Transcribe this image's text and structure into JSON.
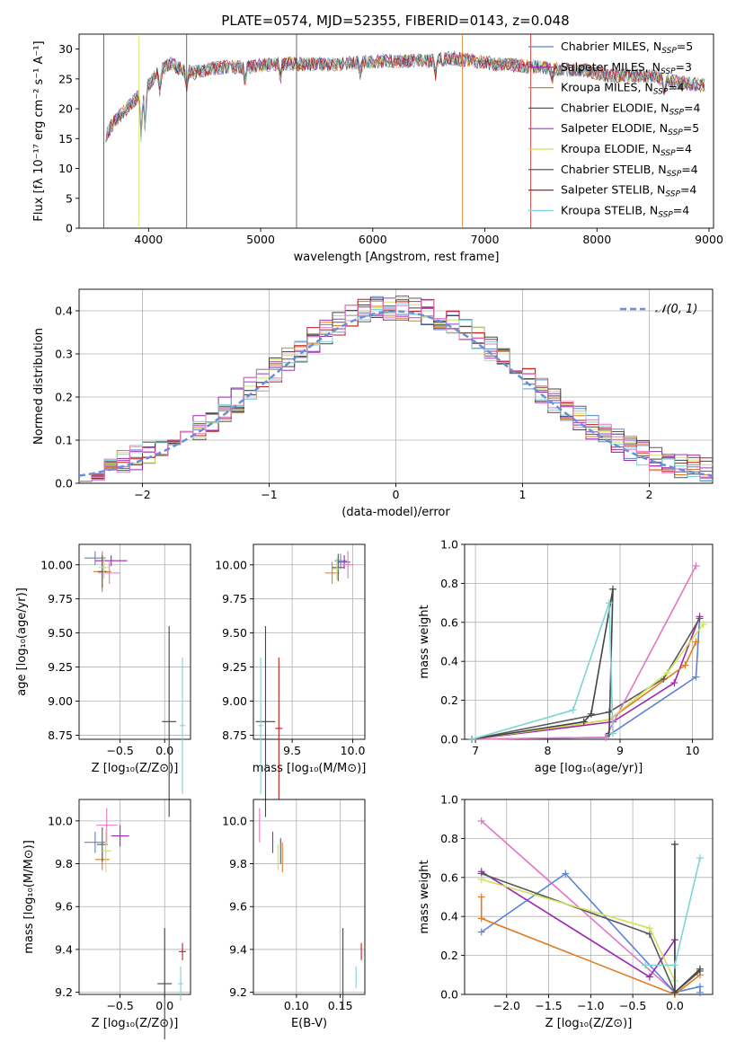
{
  "figure_title": "PLATE=0574, MJD=52355, FIBERID=0143, z=0.048",
  "colors": {
    "chabrier_miles": "#5b84d6",
    "salpeter_miles": "#9c27b0",
    "kroupa_miles": "#e07c22",
    "chabrier_elodie": "#5a5a5a",
    "salpeter_elodie": "#9b3ab8",
    "kroupa_elodie": "#cfe25a",
    "chabrier_stelib": "#444444",
    "salpeter_stelib": "#c01a1a",
    "kroupa_stelib": "#7fd3d7",
    "pink": "#e377c2",
    "gaussian": "#6a8fd8",
    "grid": "#b0b0b0"
  },
  "chart_data": [
    {
      "id": "spectrum",
      "type": "line",
      "title": "PLATE=0574, MJD=52355, FIBERID=0143, z=0.048",
      "xlabel": "wavelength [Angstrom, rest frame]",
      "ylabel": "Flux [fλ 10⁻¹⁷ erg cm⁻² s⁻¹ A⁻¹]",
      "xlim": [
        3380,
        9040
      ],
      "ylim": [
        0,
        32.5
      ],
      "xticks": [
        4000,
        5000,
        6000,
        7000,
        8000,
        9000
      ],
      "yticks": [
        0,
        5,
        10,
        15,
        20,
        25,
        30
      ],
      "grid": false,
      "legend_position": "right",
      "continuum": {
        "x": [
          3600,
          3700,
          3800,
          3900,
          4000,
          4100,
          4200,
          4300,
          4400,
          4500,
          4700,
          4900,
          5100,
          5300,
          5500,
          5700,
          5900,
          6100,
          6300,
          6500,
          6700,
          6900,
          7100,
          7300,
          7500,
          7700,
          7900,
          8100,
          8300,
          8500,
          8700,
          8900
        ],
        "y": [
          15,
          18,
          20,
          22,
          24,
          26.5,
          27.5,
          26.5,
          26,
          26.5,
          27,
          27,
          27.5,
          27.5,
          27.5,
          27.5,
          27.8,
          28,
          28,
          28,
          28.5,
          28,
          27.5,
          27.2,
          27,
          26.5,
          26.5,
          25.5,
          25.5,
          25.5,
          24.5,
          24
        ]
      },
      "series": [
        {
          "name": "Chabrier MILES, N_SSP=5",
          "color_key": "chabrier_miles"
        },
        {
          "name": "Salpeter MILES, N_SSP=3",
          "color_key": "salpeter_miles"
        },
        {
          "name": "Kroupa MILES, N_SSP=4",
          "color_key": "kroupa_miles"
        },
        {
          "name": "Chabrier ELODIE, N_SSP=4",
          "color_key": "chabrier_elodie"
        },
        {
          "name": "Salpeter ELODIE, N_SSP=5",
          "color_key": "salpeter_elodie"
        },
        {
          "name": "Kroupa ELODIE, N_SSP=4",
          "color_key": "kroupa_elodie"
        },
        {
          "name": "Chabrier STELIB, N_SSP=4",
          "color_key": "chabrier_stelib"
        },
        {
          "name": "Salpeter STELIB, N_SSP=4",
          "color_key": "salpeter_stelib"
        },
        {
          "name": "Kroupa STELIB, N_SSP=4",
          "color_key": "kroupa_stelib"
        }
      ]
    },
    {
      "id": "residuals",
      "type": "line",
      "xlabel": "(data-model)/error",
      "ylabel": "Normed distribution",
      "xlim": [
        -2.5,
        2.5
      ],
      "ylim": [
        0,
        0.45
      ],
      "xticks": [
        -2,
        -1,
        0,
        1,
        2
      ],
      "yticks": [
        0.0,
        0.1,
        0.2,
        0.3,
        0.4
      ],
      "grid": true,
      "legend": "𝒩(0, 1)",
      "legend_position": "top-right",
      "hist_bins": 50,
      "series_color_keys": [
        "chabrier_miles",
        "salpeter_miles",
        "kroupa_miles",
        "chabrier_elodie",
        "salpeter_elodie",
        "kroupa_elodie",
        "chabrier_stelib",
        "salpeter_stelib",
        "kroupa_stelib",
        "pink"
      ]
    },
    {
      "id": "age_vs_Z",
      "type": "scatter",
      "xlabel": "Z [log₁₀(Z/Z⊙)]",
      "ylabel": "age  [log₁₀(age/yr)]",
      "xlim": [
        -0.96,
        0.29
      ],
      "ylim": [
        8.72,
        10.15
      ],
      "xticks": [
        -0.5,
        0.0
      ],
      "yticks": [
        8.75,
        9.0,
        9.25,
        9.5,
        9.75,
        10.0
      ],
      "grid": true,
      "points": [
        {
          "x": -0.78,
          "y": 10.05,
          "xerr": 0.12,
          "yerr": 0.05,
          "color_key": "chabrier_miles"
        },
        {
          "x": -0.6,
          "y": 10.03,
          "xerr": 0.18,
          "yerr": 0.04,
          "color_key": "salpeter_miles"
        },
        {
          "x": -0.7,
          "y": 9.95,
          "xerr": 0.1,
          "yerr": 0.15,
          "color_key": "kroupa_miles"
        },
        {
          "x": -0.7,
          "y": 9.95,
          "xerr": 0.05,
          "yerr": 0.12,
          "color_key": "chabrier_elodie"
        },
        {
          "x": -0.62,
          "y": 9.94,
          "xerr": 0.12,
          "yerr": 0.08,
          "color_key": "pink"
        },
        {
          "x": -0.68,
          "y": 9.98,
          "xerr": 0.06,
          "yerr": 0.08,
          "color_key": "kroupa_elodie"
        },
        {
          "x": 0.05,
          "y": 8.85,
          "xerr": 0.08,
          "yerr": 0.7,
          "color_key": "chabrier_stelib"
        },
        {
          "x": 0.2,
          "y": 8.82,
          "xerr": 0.03,
          "yerr": 0.5,
          "color_key": "kroupa_stelib"
        }
      ]
    },
    {
      "id": "age_vs_mass",
      "type": "scatter",
      "xlabel": "mass [log₁₀(M/M⊙)]",
      "xlim": [
        9.18,
        10.1
      ],
      "ylim": [
        8.72,
        10.15
      ],
      "xticks": [
        9.5,
        10.0
      ],
      "yticks": [
        8.75,
        9.0,
        9.25,
        9.5,
        9.75,
        10.0
      ],
      "grid": true,
      "points": [
        {
          "x": 9.9,
          "y": 10.03,
          "xerr": 0.05,
          "yerr": 0.05,
          "color_key": "chabrier_miles"
        },
        {
          "x": 9.93,
          "y": 10.02,
          "xerr": 0.05,
          "yerr": 0.05,
          "color_key": "salpeter_miles"
        },
        {
          "x": 9.83,
          "y": 9.94,
          "xerr": 0.06,
          "yerr": 0.08,
          "color_key": "kroupa_miles"
        },
        {
          "x": 9.88,
          "y": 9.98,
          "xerr": 0.05,
          "yerr": 0.1,
          "color_key": "chabrier_elodie"
        },
        {
          "x": 9.96,
          "y": 10.0,
          "xerr": 0.05,
          "yerr": 0.1,
          "color_key": "pink"
        },
        {
          "x": 9.87,
          "y": 9.97,
          "xerr": 0.04,
          "yerr": 0.08,
          "color_key": "kroupa_elodie"
        },
        {
          "x": 9.28,
          "y": 8.85,
          "xerr": 0.08,
          "yerr": 0.7,
          "color_key": "chabrier_stelib"
        },
        {
          "x": 9.39,
          "y": 8.8,
          "xerr": 0.03,
          "yerr": 0.52,
          "color_key": "salpeter_stelib"
        },
        {
          "x": 9.24,
          "y": 8.82,
          "xerr": 0.02,
          "yerr": 0.5,
          "color_key": "kroupa_stelib"
        }
      ]
    },
    {
      "id": "massweight_vs_age",
      "type": "line",
      "xlabel": "age  [log₁₀(age/yr)]",
      "ylabel": "mass weight",
      "xlim": [
        6.85,
        10.28
      ],
      "ylim": [
        0,
        1.0
      ],
      "xticks": [
        7,
        8,
        9,
        10
      ],
      "yticks": [
        0.0,
        0.2,
        0.4,
        0.6,
        0.8,
        1.0
      ],
      "grid": true,
      "series": [
        {
          "color_key": "chabrier_miles",
          "x": [
            6.95,
            8.8,
            10.05,
            10.1
          ],
          "y": [
            0.0,
            0.01,
            0.32,
            0.62
          ]
        },
        {
          "color_key": "salpeter_miles",
          "x": [
            6.95,
            8.9,
            9.75,
            10.1
          ],
          "y": [
            0.0,
            0.09,
            0.29,
            0.63
          ]
        },
        {
          "color_key": "kroupa_miles",
          "x": [
            6.95,
            8.85,
            9.9,
            10.05
          ],
          "y": [
            0.0,
            0.1,
            0.38,
            0.5
          ]
        },
        {
          "color_key": "chabrier_elodie",
          "x": [
            6.95,
            8.85,
            9.6,
            10.1
          ],
          "y": [
            0.0,
            0.14,
            0.31,
            0.62
          ]
        },
        {
          "color_key": "pink",
          "x": [
            6.95,
            8.8,
            10.05
          ],
          "y": [
            0.0,
            0.01,
            0.89
          ]
        },
        {
          "color_key": "kroupa_elodie",
          "x": [
            6.95,
            8.85,
            9.65,
            10.15
          ],
          "y": [
            0.0,
            0.1,
            0.34,
            0.59
          ]
        },
        {
          "color_key": "chabrier_stelib",
          "x": [
            6.95,
            8.5,
            8.6,
            8.9,
            8.85
          ],
          "y": [
            0.0,
            0.09,
            0.13,
            0.77,
            0.03
          ]
        },
        {
          "color_key": "kroupa_stelib",
          "x": [
            6.95,
            8.35,
            8.85,
            8.9
          ],
          "y": [
            0.0,
            0.15,
            0.7,
            0.03
          ]
        }
      ]
    },
    {
      "id": "mass_vs_Z",
      "type": "scatter",
      "xlabel": "Z [log₁₀(Z/Z⊙)]",
      "ylabel": "mass [log₁₀(M/M⊙)]",
      "xlim": [
        -0.96,
        0.29
      ],
      "ylim": [
        9.19,
        10.1
      ],
      "xticks": [
        -0.5,
        0.0
      ],
      "yticks": [
        9.2,
        9.4,
        9.6,
        9.8,
        10.0
      ],
      "grid": true,
      "points": [
        {
          "x": -0.78,
          "y": 9.9,
          "xerr": 0.12,
          "yerr": 0.05,
          "color_key": "chabrier_miles"
        },
        {
          "x": -0.5,
          "y": 9.93,
          "xerr": 0.1,
          "yerr": 0.05,
          "color_key": "salpeter_miles"
        },
        {
          "x": -0.7,
          "y": 9.82,
          "xerr": 0.08,
          "yerr": 0.05,
          "color_key": "kroupa_miles"
        },
        {
          "x": -0.7,
          "y": 9.89,
          "xerr": 0.06,
          "yerr": 0.08,
          "color_key": "chabrier_elodie"
        },
        {
          "x": -0.65,
          "y": 9.98,
          "xerr": 0.12,
          "yerr": 0.08,
          "color_key": "pink"
        },
        {
          "x": -0.66,
          "y": 9.86,
          "xerr": 0.06,
          "yerr": 0.1,
          "color_key": "kroupa_elodie"
        },
        {
          "x": 0.0,
          "y": 9.24,
          "xerr": 0.08,
          "yerr": 0.26,
          "color_key": "chabrier_stelib"
        },
        {
          "x": 0.2,
          "y": 9.39,
          "xerr": 0.04,
          "yerr": 0.04,
          "color_key": "salpeter_stelib"
        },
        {
          "x": 0.18,
          "y": 9.24,
          "xerr": 0.03,
          "yerr": 0.08,
          "color_key": "kroupa_stelib"
        }
      ]
    },
    {
      "id": "mass_vs_ebv",
      "type": "scatter",
      "xlabel": "E(B-V)",
      "xlim": [
        0.051,
        0.178
      ],
      "ylim": [
        9.19,
        10.1
      ],
      "xticks": [
        0.1,
        0.15
      ],
      "yticks": [
        9.2,
        9.4,
        9.6,
        9.8,
        10.0
      ],
      "grid": true,
      "points": [
        {
          "x": 0.058,
          "y": 9.98,
          "xerr": 0.0,
          "yerr": 0.08,
          "color_key": "pink"
        },
        {
          "x": 0.073,
          "y": 9.9,
          "xerr": 0.0,
          "yerr": 0.05,
          "color_key": "salpeter_miles"
        },
        {
          "x": 0.079,
          "y": 9.83,
          "xerr": 0.0,
          "yerr": 0.06,
          "color_key": "kroupa_elodie"
        },
        {
          "x": 0.082,
          "y": 9.86,
          "xerr": 0.0,
          "yerr": 0.06,
          "color_key": "chabrier_elodie"
        },
        {
          "x": 0.084,
          "y": 9.83,
          "xerr": 0.0,
          "yerr": 0.07,
          "color_key": "kroupa_miles"
        },
        {
          "x": 0.153,
          "y": 9.31,
          "xerr": 0.0,
          "yerr": 0.19,
          "color_key": "chabrier_stelib"
        },
        {
          "x": 0.168,
          "y": 9.27,
          "xerr": 0.0,
          "yerr": 0.05,
          "color_key": "kroupa_stelib"
        },
        {
          "x": 0.174,
          "y": 9.39,
          "xerr": 0.0,
          "yerr": 0.04,
          "color_key": "salpeter_stelib"
        }
      ]
    },
    {
      "id": "massweight_vs_Z",
      "type": "line",
      "xlabel": "Z [log₁₀(Z/Z⊙)]",
      "ylabel": "mass weight",
      "xlim": [
        -2.5,
        0.45
      ],
      "ylim": [
        0,
        1.0
      ],
      "xticks": [
        -2.0,
        -1.5,
        -1.0,
        -0.5,
        0.0
      ],
      "yticks": [
        0.0,
        0.2,
        0.4,
        0.6,
        0.8,
        1.0
      ],
      "grid": true,
      "series": [
        {
          "color_key": "pink",
          "x": [
            -2.3,
            0.0
          ],
          "y": [
            0.89,
            0.01
          ]
        },
        {
          "color_key": "chabrier_miles",
          "x": [
            -2.3,
            -1.3,
            0.0,
            0.3,
            0.3
          ],
          "y": [
            0.32,
            0.62,
            0.01,
            0.04,
            0.01
          ]
        },
        {
          "color_key": "salpeter_miles",
          "x": [
            -2.3,
            -0.3,
            0.0,
            0.0
          ],
          "y": [
            0.63,
            0.09,
            0.28,
            0.0
          ]
        },
        {
          "color_key": "kroupa_miles",
          "x": [
            -2.3,
            -2.3,
            0.0,
            0.3
          ],
          "y": [
            0.5,
            0.39,
            0.0,
            0.1
          ]
        },
        {
          "color_key": "chabrier_elodie",
          "x": [
            -2.3,
            -0.3,
            0.0,
            0.3
          ],
          "y": [
            0.62,
            0.31,
            0.01,
            0.12
          ]
        },
        {
          "color_key": "kroupa_elodie",
          "x": [
            -2.3,
            -0.3,
            0.0
          ],
          "y": [
            0.59,
            0.34,
            0.07
          ]
        },
        {
          "color_key": "chabrier_stelib",
          "x": [
            0.0,
            0.0,
            0.3
          ],
          "y": [
            0.77,
            0.01,
            0.13
          ]
        },
        {
          "color_key": "kroupa_stelib",
          "x": [
            -0.35,
            0.0,
            0.3
          ],
          "y": [
            0.15,
            0.15,
            0.7
          ]
        }
      ]
    }
  ]
}
